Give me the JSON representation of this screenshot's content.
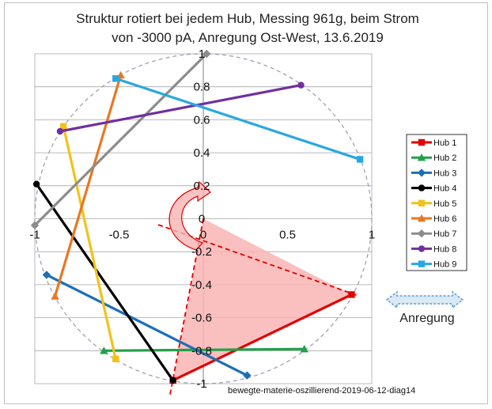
{
  "chart_data": {
    "type": "line",
    "title_line1": "Struktur rotiert bei jedem Hub, Messing 961g, beim Strom",
    "title_line2": "von  -3000 pA, Anregung Ost-West, 13.6.2019",
    "xlabel": "",
    "ylabel": "",
    "xlim": [
      -1,
      1
    ],
    "ylim": [
      -1,
      1
    ],
    "x_ticks": [
      "-1",
      "-0.5",
      "0",
      "0.5",
      "1"
    ],
    "y_ticks": [
      "1",
      "0.8",
      "0.6",
      "0.4",
      "0.2",
      "0",
      "-0.2",
      "-0.4",
      "-0.6",
      "-0.8",
      "-1"
    ],
    "grid": "horizontal",
    "legend_position": "right",
    "unit_circle": true,
    "series": [
      {
        "name": "Hub 1",
        "color": "#e00000",
        "marker": "square",
        "points": [
          [
            -0.18,
            -0.98
          ],
          [
            0.88,
            -0.46
          ]
        ]
      },
      {
        "name": "Hub 2",
        "color": "#22a04a",
        "marker": "triangle",
        "points": [
          [
            -0.59,
            -0.8
          ],
          [
            0.6,
            -0.79
          ]
        ]
      },
      {
        "name": "Hub 3",
        "color": "#1e6fb4",
        "marker": "diamond",
        "points": [
          [
            -0.93,
            -0.34
          ],
          [
            0.26,
            -0.95
          ]
        ]
      },
      {
        "name": "Hub 4",
        "color": "#000000",
        "marker": "circle",
        "points": [
          [
            -0.99,
            0.21
          ],
          [
            -0.18,
            -0.98
          ]
        ]
      },
      {
        "name": "Hub 5",
        "color": "#f2c21b",
        "marker": "square",
        "points": [
          [
            -0.83,
            0.56
          ],
          [
            -0.52,
            -0.85
          ]
        ]
      },
      {
        "name": "Hub 6",
        "color": "#e87722",
        "marker": "triangle",
        "points": [
          [
            -0.88,
            -0.47
          ],
          [
            -0.49,
            0.87
          ]
        ]
      },
      {
        "name": "Hub 7",
        "color": "#8c8c8c",
        "marker": "diamond",
        "points": [
          [
            -1.0,
            -0.04
          ],
          [
            0.02,
            1.0
          ]
        ]
      },
      {
        "name": "Hub 8",
        "color": "#7030a0",
        "marker": "circle",
        "points": [
          [
            -0.85,
            0.53
          ],
          [
            0.58,
            0.81
          ]
        ]
      },
      {
        "name": "Hub 9",
        "color": "#29a8e0",
        "marker": "square",
        "points": [
          [
            -0.52,
            0.85
          ],
          [
            0.93,
            0.36
          ]
        ]
      }
    ],
    "annotations": {
      "axis_line_angle_deg": -27,
      "triangle_points": [
        [
          0.0,
          0.0
        ],
        [
          0.88,
          -0.46
        ],
        [
          -0.18,
          -0.98
        ]
      ],
      "arrow_label": "Anregung",
      "footnote": "bewegte-materie-oszillierend-2019-06-12-diag14"
    }
  },
  "colors": {
    "grid": "#a6a6a6",
    "circle": "#9a9ab0",
    "triangle_fill": "#f9b4b4",
    "dashed_line": "#e00000",
    "arrow_fill": "#dbe8f5",
    "arrow_stroke": "#5b9bd5"
  }
}
